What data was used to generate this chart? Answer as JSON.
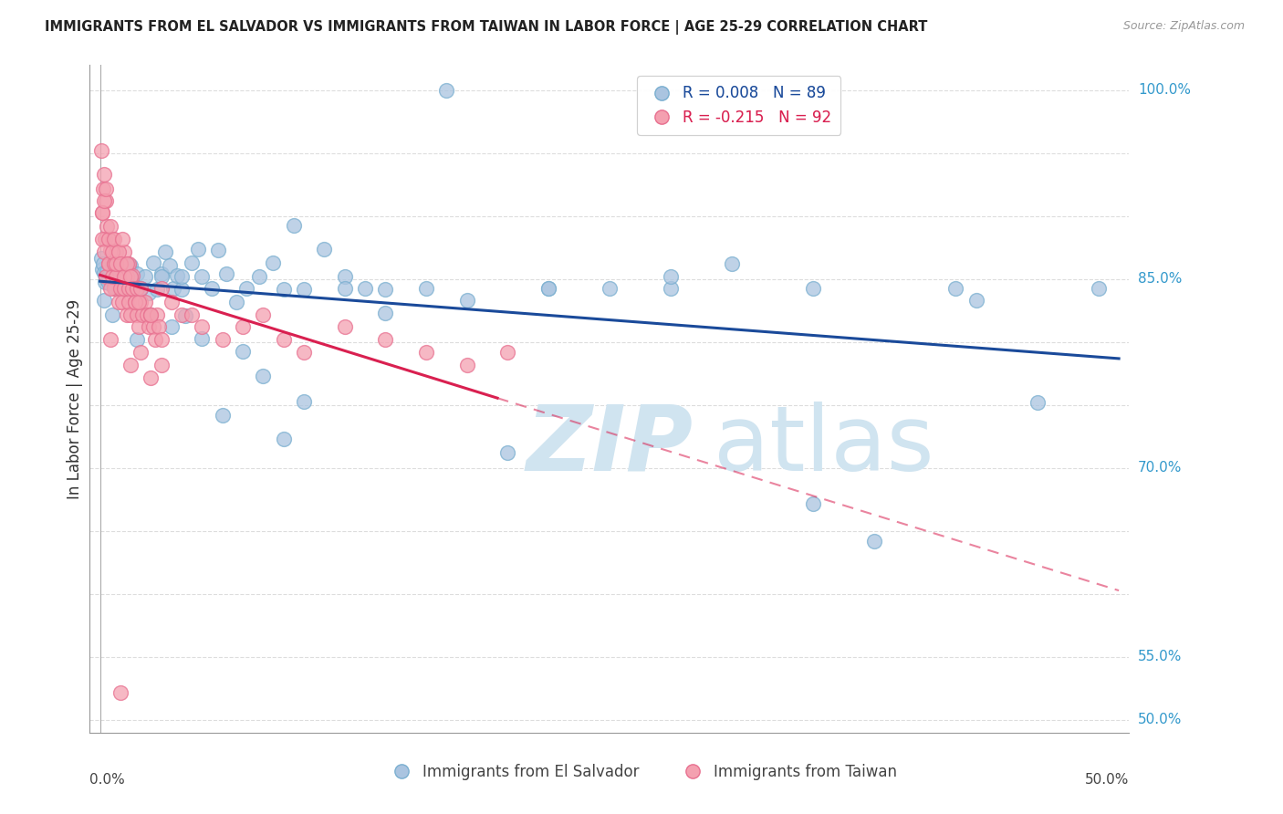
{
  "title": "IMMIGRANTS FROM EL SALVADOR VS IMMIGRANTS FROM TAIWAN IN LABOR FORCE | AGE 25-29 CORRELATION CHART",
  "source": "Source: ZipAtlas.com",
  "ylabel": "In Labor Force | Age 25-29",
  "blue_R": 0.008,
  "blue_N": 89,
  "pink_R": -0.215,
  "pink_N": 92,
  "blue_color": "#aac4e0",
  "pink_color": "#f4a0b0",
  "blue_edge_color": "#7aafd0",
  "pink_edge_color": "#e87090",
  "blue_line_color": "#1a4a9a",
  "pink_line_color": "#d92050",
  "blue_label": "Immigrants from El Salvador",
  "pink_label": "Immigrants from Taiwan",
  "watermark_color": "#d0e4f0",
  "grid_color": "#dddddd",
  "x_min": 0.0,
  "x_max": 0.5,
  "y_min": 0.49,
  "y_max": 1.02,
  "blue_scatter_x": [
    0.0005,
    0.001,
    0.0015,
    0.002,
    0.0025,
    0.003,
    0.0035,
    0.004,
    0.005,
    0.006,
    0.007,
    0.008,
    0.009,
    0.01,
    0.011,
    0.012,
    0.013,
    0.014,
    0.015,
    0.016,
    0.018,
    0.02,
    0.022,
    0.024,
    0.026,
    0.028,
    0.03,
    0.032,
    0.034,
    0.036,
    0.038,
    0.04,
    0.042,
    0.045,
    0.048,
    0.05,
    0.055,
    0.058,
    0.062,
    0.067,
    0.072,
    0.078,
    0.085,
    0.09,
    0.095,
    0.1,
    0.11,
    0.12,
    0.13,
    0.14,
    0.002,
    0.004,
    0.006,
    0.008,
    0.01,
    0.012,
    0.014,
    0.016,
    0.018,
    0.02,
    0.025,
    0.03,
    0.035,
    0.04,
    0.05,
    0.06,
    0.07,
    0.08,
    0.09,
    0.1,
    0.12,
    0.14,
    0.16,
    0.18,
    0.2,
    0.22,
    0.25,
    0.28,
    0.31,
    0.35,
    0.38,
    0.42,
    0.46,
    0.49,
    0.43,
    0.35,
    0.28,
    0.22,
    0.17
  ],
  "blue_scatter_y": [
    0.867,
    0.858,
    0.862,
    0.855,
    0.848,
    0.851,
    0.856,
    0.847,
    0.853,
    0.861,
    0.844,
    0.852,
    0.843,
    0.855,
    0.847,
    0.851,
    0.845,
    0.853,
    0.861,
    0.848,
    0.854,
    0.843,
    0.852,
    0.839,
    0.863,
    0.842,
    0.854,
    0.872,
    0.861,
    0.843,
    0.853,
    0.842,
    0.821,
    0.863,
    0.874,
    0.852,
    0.843,
    0.873,
    0.854,
    0.832,
    0.843,
    0.852,
    0.863,
    0.842,
    0.893,
    0.842,
    0.874,
    0.852,
    0.843,
    0.842,
    0.833,
    0.852,
    0.822,
    0.843,
    0.843,
    0.852,
    0.861,
    0.843,
    0.802,
    0.843,
    0.822,
    0.852,
    0.812,
    0.852,
    0.803,
    0.742,
    0.793,
    0.773,
    0.723,
    0.753,
    0.843,
    0.823,
    0.843,
    0.833,
    0.712,
    0.843,
    0.843,
    0.843,
    0.862,
    0.672,
    0.642,
    0.843,
    0.752,
    0.843,
    0.833,
    0.843,
    0.852,
    0.843,
    1.0
  ],
  "pink_scatter_x": [
    0.0005,
    0.001,
    0.0015,
    0.002,
    0.0025,
    0.003,
    0.0035,
    0.004,
    0.005,
    0.006,
    0.007,
    0.008,
    0.009,
    0.01,
    0.011,
    0.012,
    0.013,
    0.014,
    0.015,
    0.016,
    0.001,
    0.002,
    0.003,
    0.004,
    0.005,
    0.006,
    0.007,
    0.008,
    0.009,
    0.01,
    0.011,
    0.012,
    0.013,
    0.014,
    0.015,
    0.016,
    0.017,
    0.018,
    0.019,
    0.02,
    0.021,
    0.022,
    0.023,
    0.024,
    0.025,
    0.026,
    0.027,
    0.028,
    0.029,
    0.03,
    0.001,
    0.002,
    0.003,
    0.004,
    0.005,
    0.006,
    0.007,
    0.008,
    0.009,
    0.01,
    0.011,
    0.012,
    0.013,
    0.014,
    0.015,
    0.016,
    0.017,
    0.018,
    0.019,
    0.02,
    0.025,
    0.03,
    0.035,
    0.04,
    0.045,
    0.05,
    0.06,
    0.07,
    0.08,
    0.09,
    0.1,
    0.12,
    0.14,
    0.16,
    0.18,
    0.2,
    0.03,
    0.025,
    0.02,
    0.015,
    0.01,
    0.005
  ],
  "pink_scatter_y": [
    0.952,
    0.903,
    0.922,
    0.933,
    0.882,
    0.912,
    0.892,
    0.862,
    0.873,
    0.882,
    0.843,
    0.872,
    0.852,
    0.862,
    0.843,
    0.872,
    0.852,
    0.862,
    0.843,
    0.853,
    0.882,
    0.872,
    0.852,
    0.862,
    0.843,
    0.852,
    0.862,
    0.852,
    0.832,
    0.843,
    0.832,
    0.843,
    0.822,
    0.832,
    0.822,
    0.843,
    0.832,
    0.822,
    0.812,
    0.832,
    0.822,
    0.832,
    0.822,
    0.812,
    0.822,
    0.812,
    0.802,
    0.822,
    0.812,
    0.802,
    0.903,
    0.912,
    0.922,
    0.882,
    0.892,
    0.872,
    0.882,
    0.862,
    0.872,
    0.862,
    0.882,
    0.852,
    0.862,
    0.843,
    0.852,
    0.843,
    0.832,
    0.843,
    0.832,
    0.843,
    0.822,
    0.843,
    0.832,
    0.822,
    0.822,
    0.812,
    0.802,
    0.812,
    0.822,
    0.802,
    0.792,
    0.812,
    0.802,
    0.792,
    0.782,
    0.792,
    0.782,
    0.772,
    0.792,
    0.782,
    0.522,
    0.802
  ]
}
